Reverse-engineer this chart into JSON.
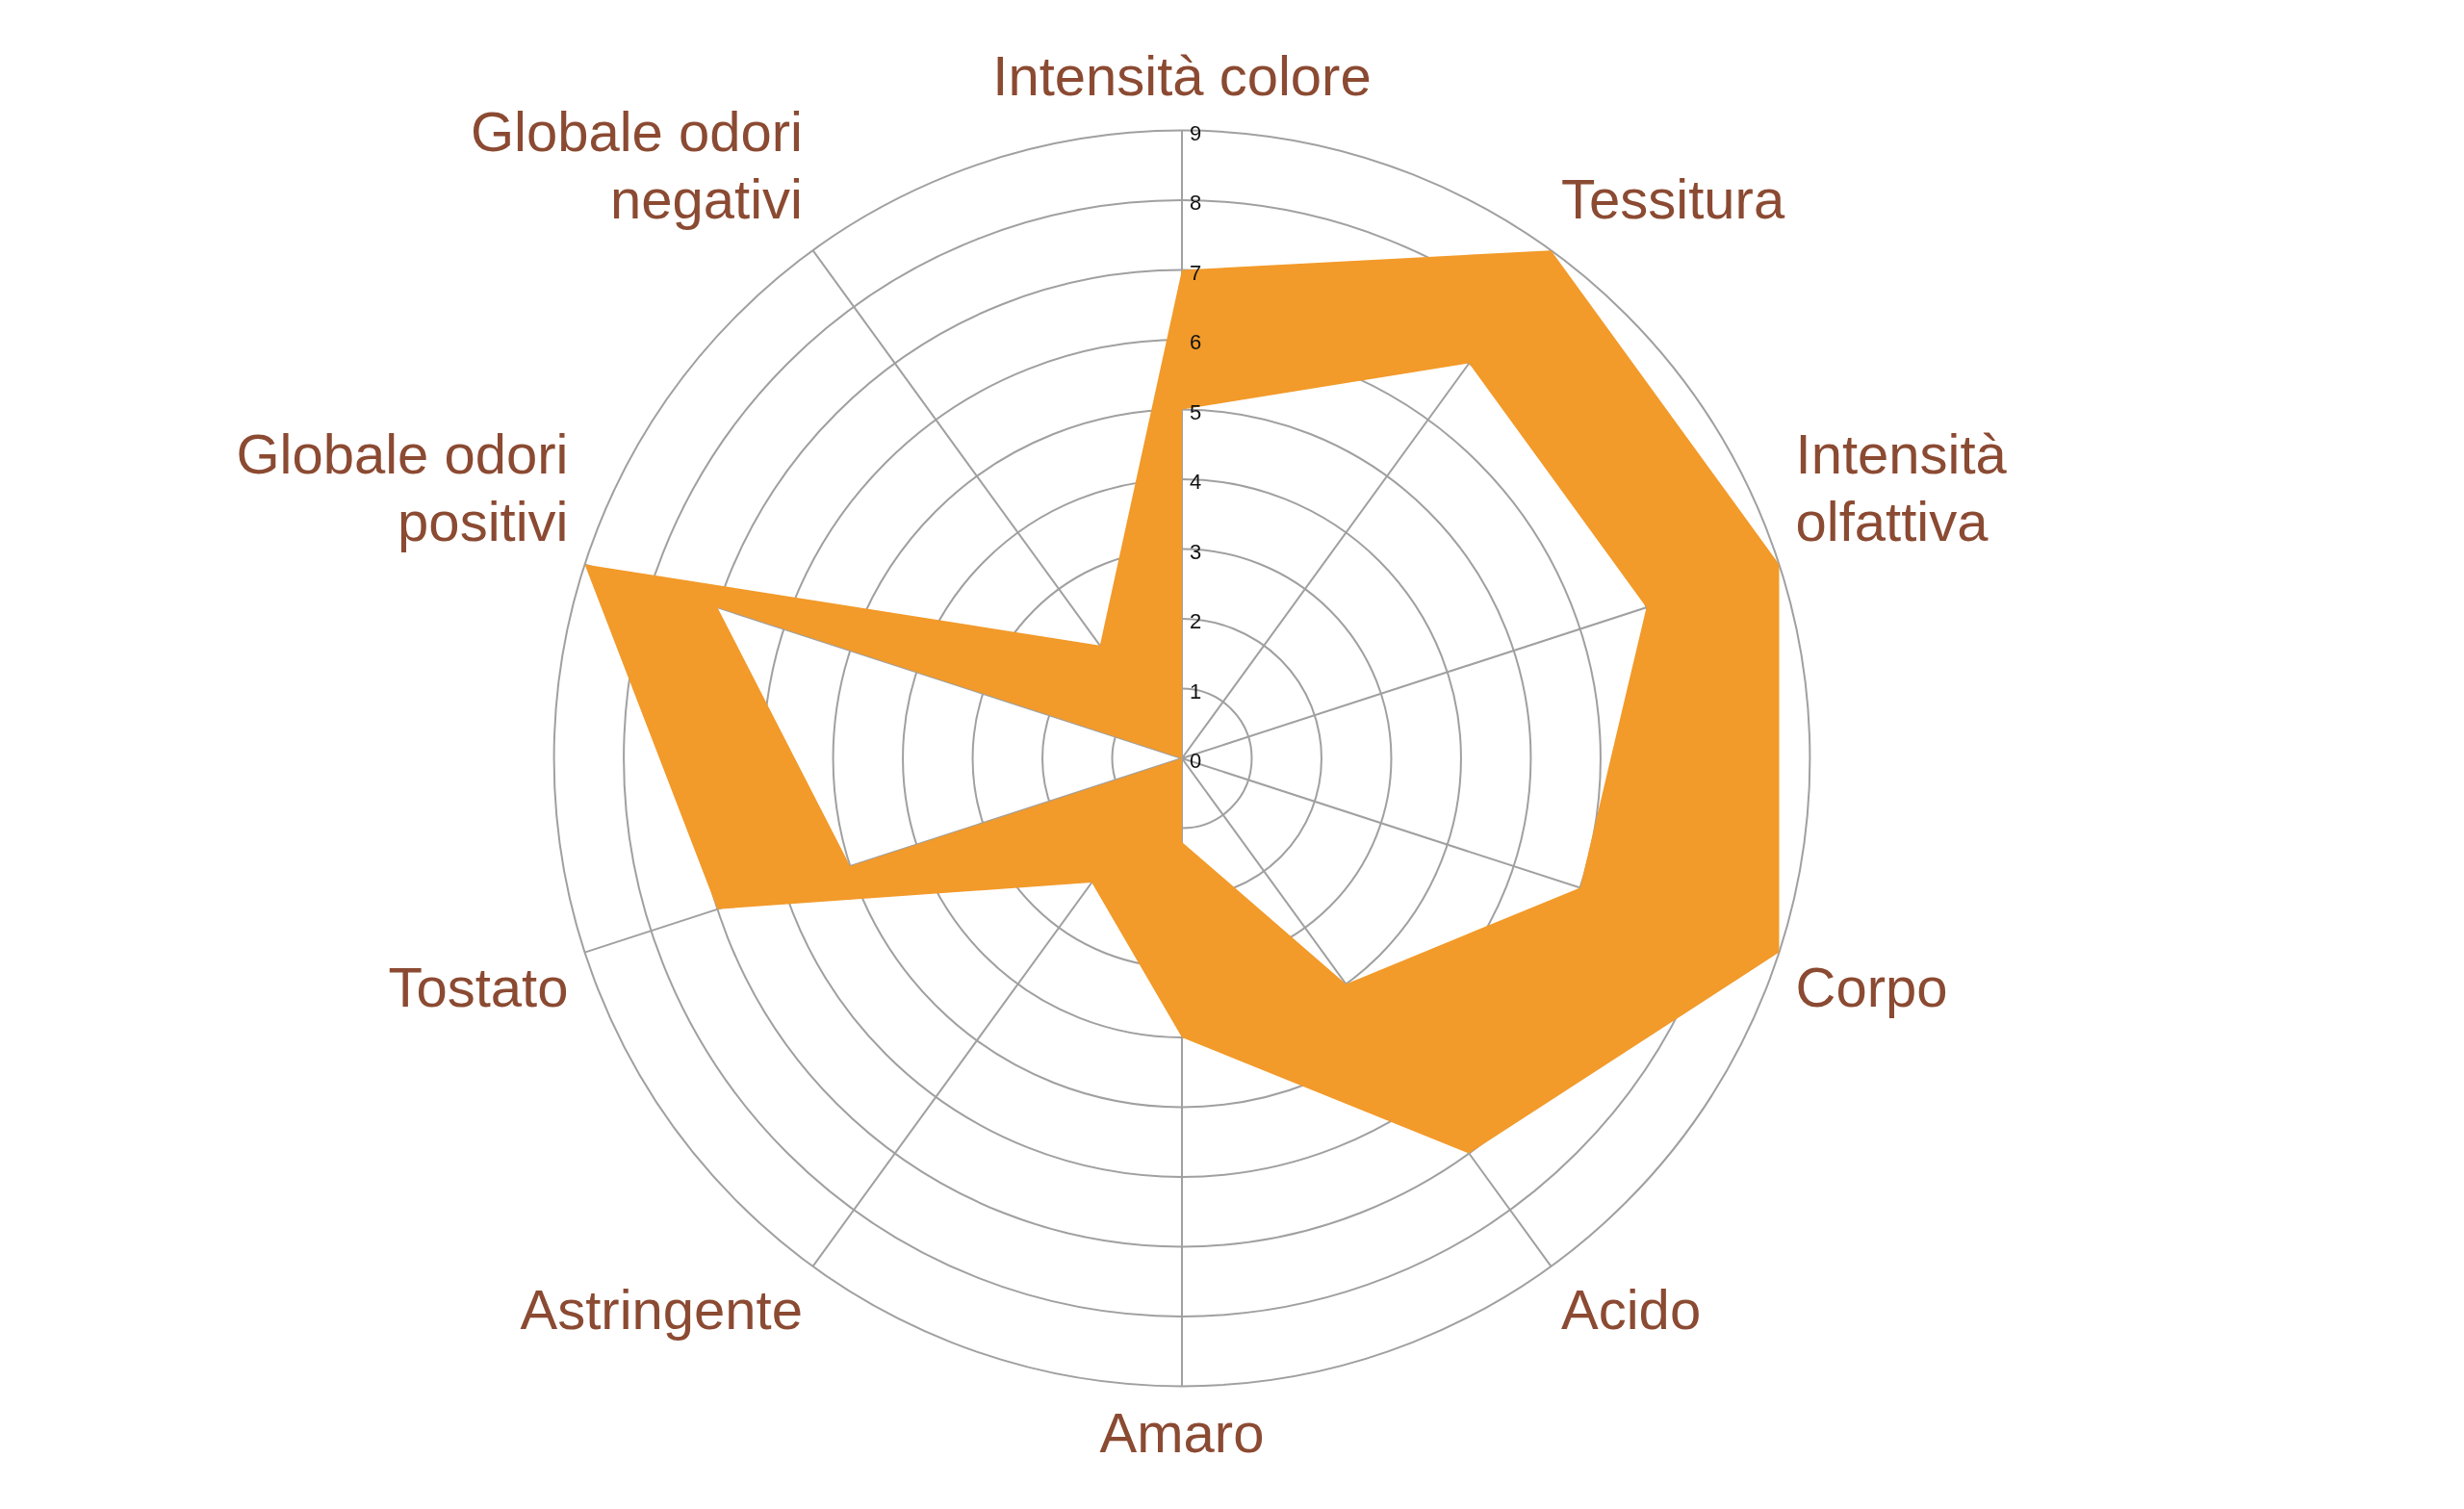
{
  "chart_data": {
    "type": "radar",
    "categories": [
      "Intensità colore",
      "Tessitura",
      "Intensità olfattiva",
      "Corpo",
      "Acido",
      "Amaro",
      "Astringente",
      "Tostato",
      "Globale odori positivi",
      "Globale odori negativi"
    ],
    "series": [
      {
        "color": "#f29a2a",
        "values": [
          7,
          9,
          9,
          9,
          7,
          4,
          2.2,
          7,
          9,
          2
        ]
      },
      {
        "color": "#f29a2a",
        "values": [
          5,
          7,
          7,
          6,
          4,
          1.2,
          0,
          5,
          7,
          0
        ]
      }
    ],
    "ylim": [
      0,
      9
    ],
    "yticks": [
      0,
      1,
      2,
      3,
      4,
      5,
      6,
      7,
      8,
      9
    ],
    "grid": true,
    "legend": false,
    "marker": "none"
  }
}
